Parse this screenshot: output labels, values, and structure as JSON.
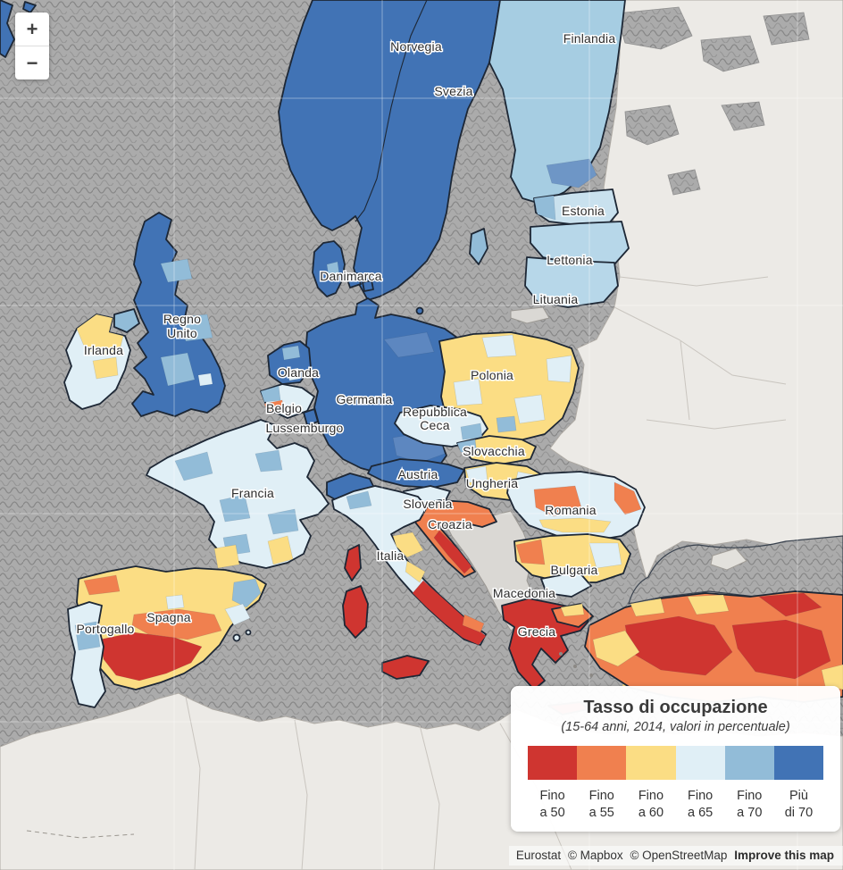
{
  "map": {
    "controls": {
      "zoom_in": "+",
      "zoom_out": "−"
    },
    "labels": {
      "norvegia": "Norvegia",
      "svezia": "Svezia",
      "finlandia": "Finlandia",
      "danimarca": "Danimarca",
      "estonia": "Estonia",
      "lettonia": "Lettonia",
      "lituania": "Lituania",
      "irlanda": "Irlanda",
      "regno_unito_1": "Regno",
      "regno_unito_2": "Unito",
      "olanda": "Olanda",
      "belgio": "Belgio",
      "lussemburgo": "Lussemburgo",
      "germania": "Germania",
      "polonia": "Polonia",
      "rep_ceca_1": "Repubblica",
      "rep_ceca_2": "Ceca",
      "slovacchia": "Slovacchia",
      "austria": "Austria",
      "ungheria": "Ungheria",
      "francia": "Francia",
      "slovenia": "Slovenia",
      "croazia": "Croazia",
      "romania": "Romania",
      "italia": "Italia",
      "bulgaria": "Bulgaria",
      "macedonia": "Macedonia",
      "spagna": "Spagna",
      "portogallo": "Portogallo",
      "grecia": "Grecia"
    },
    "attribution": {
      "eurostat": "Eurostat",
      "mapbox": "© Mapbox",
      "osm": "© OpenStreetMap",
      "improve": "Improve this map"
    }
  },
  "legend": {
    "title": "Tasso di occupazione",
    "subtitle": "(15-64 anni, 2014, valori in percentuale)",
    "items": [
      {
        "color": "#cf3530",
        "line1": "Fino",
        "line2": "a 50"
      },
      {
        "color": "#f0804f",
        "line1": "Fino",
        "line2": "a 55"
      },
      {
        "color": "#fbdd84",
        "line1": "Fino",
        "line2": "a 60"
      },
      {
        "color": "#e0eff6",
        "line1": "Fino",
        "line2": "a 65"
      },
      {
        "color": "#92bcd8",
        "line1": "Fino",
        "line2": "a 70"
      },
      {
        "color": "#4173b5",
        "line1": "Più",
        "line2": "di 70"
      }
    ]
  },
  "chart_data": {
    "type": "choropleth",
    "title": "Tasso di occupazione",
    "subtitle": "(15-64 anni, 2014, valori in percentuale)",
    "unit": "percentuale occupati 15-64 anni, 2014",
    "buckets": [
      {
        "label": "Fino a 50",
        "color": "#cf3530"
      },
      {
        "label": "Fino a 55",
        "color": "#f0804f"
      },
      {
        "label": "Fino a 60",
        "color": "#fbdd84"
      },
      {
        "label": "Fino a 65",
        "color": "#e0eff6"
      },
      {
        "label": "Fino a 70",
        "color": "#92bcd8"
      },
      {
        "label": "Più di 70",
        "color": "#4173b5"
      }
    ],
    "countries": [
      {
        "name": "Norvegia",
        "dominant_class": "Più di 70"
      },
      {
        "name": "Svezia",
        "dominant_class": "Più di 70"
      },
      {
        "name": "Finlandia",
        "dominant_class": "Fino a 70"
      },
      {
        "name": "Danimarca",
        "dominant_class": "Più di 70"
      },
      {
        "name": "Estonia",
        "dominant_class": "Fino a 70"
      },
      {
        "name": "Lettonia",
        "dominant_class": "Fino a 70"
      },
      {
        "name": "Lituania",
        "dominant_class": "Fino a 70"
      },
      {
        "name": "Irlanda",
        "dominant_class": "Fino a 60 / Fino a 65"
      },
      {
        "name": "Regno Unito",
        "dominant_class": "Più di 70"
      },
      {
        "name": "Olanda",
        "dominant_class": "Più di 70"
      },
      {
        "name": "Belgio",
        "dominant_class": "Fino a 65"
      },
      {
        "name": "Lussemburgo",
        "dominant_class": "Più di 70"
      },
      {
        "name": "Germania",
        "dominant_class": "Più di 70"
      },
      {
        "name": "Polonia",
        "dominant_class": "Fino a 60 / Fino a 65"
      },
      {
        "name": "Repubblica Ceca",
        "dominant_class": "Fino a 65 / Fino a 70"
      },
      {
        "name": "Slovacchia",
        "dominant_class": "Fino a 60"
      },
      {
        "name": "Austria",
        "dominant_class": "Più di 70"
      },
      {
        "name": "Ungheria",
        "dominant_class": "Fino a 60"
      },
      {
        "name": "Francia",
        "dominant_class": "Fino a 65"
      },
      {
        "name": "Slovenia",
        "dominant_class": "Fino a 65"
      },
      {
        "name": "Croazia",
        "dominant_class": "Fino a 55"
      },
      {
        "name": "Romania",
        "dominant_class": "Fino a 55 / Fino a 65"
      },
      {
        "name": "Italia",
        "dominant_class": "Fino a 65 nord, Fino a 50 sud"
      },
      {
        "name": "Bulgaria",
        "dominant_class": "Fino a 60"
      },
      {
        "name": "Spagna",
        "dominant_class": "Fino a 50 / Fino a 60"
      },
      {
        "name": "Portogallo",
        "dominant_class": "Fino a 65"
      },
      {
        "name": "Grecia",
        "dominant_class": "Fino a 50"
      }
    ]
  }
}
